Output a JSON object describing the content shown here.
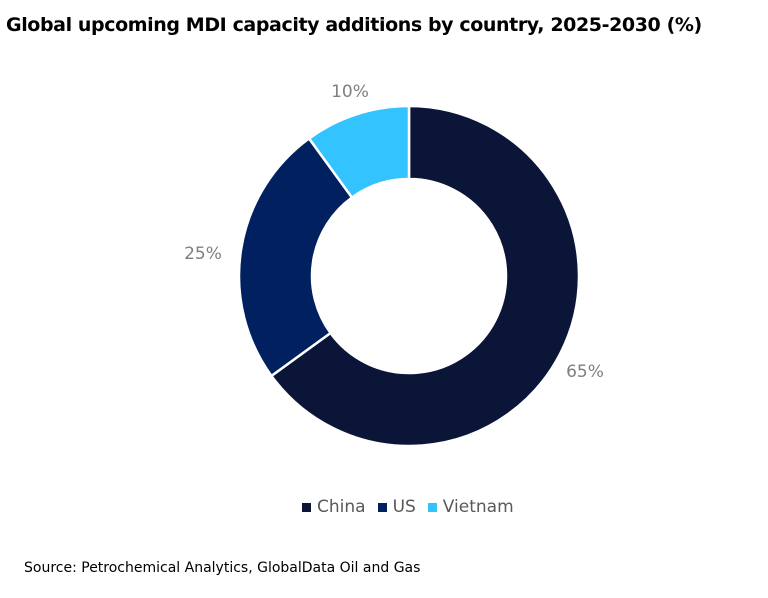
{
  "title": "Global upcoming MDI capacity additions by country, 2025-2030 (%)",
  "source": "Source: Petrochemical Analytics, GlobalData Oil and Gas",
  "chart_data": {
    "type": "pie",
    "donut": true,
    "title": "Global upcoming MDI capacity additions by country, 2025-2030 (%)",
    "categories": [
      "China",
      "US",
      "Vietnam"
    ],
    "values": [
      65,
      25,
      10
    ],
    "data_labels": [
      "65%",
      "25%",
      "10%"
    ],
    "colors": [
      "#0b1538",
      "#002060",
      "#33c3ff"
    ],
    "legend_placement": "bottom"
  }
}
